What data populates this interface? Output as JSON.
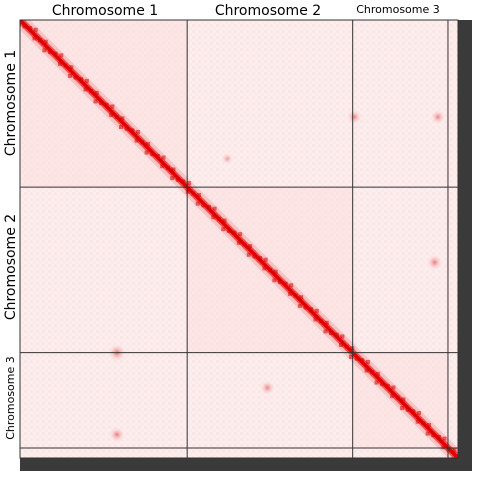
{
  "chart_data": {
    "type": "heatmap",
    "title": "",
    "description_colors": {
      "background": "#ffffff",
      "low": "#fdf0f0",
      "mid": "#f6b8b8",
      "high": "#e00000",
      "boundary": "#333333",
      "frame": "#3a3a3a"
    },
    "chromosomes": [
      {
        "name": "Chromosome 1",
        "start": 0,
        "end": 1.0
      },
      {
        "name": "Chromosome 2",
        "start": 1.0,
        "end": 1.99
      },
      {
        "name": "Chromosome 3",
        "start": 1.99,
        "end": 2.56
      },
      {
        "name": "",
        "start": 2.56,
        "end": 2.62
      }
    ],
    "top_labels": [
      "Chromosome 1",
      "Chromosome 2",
      "Chromosome 3"
    ],
    "side_labels": [
      "Chromosome 1",
      "Chromosome 2",
      "Chromosome 3"
    ],
    "diagonal": "strong red along main diagonal",
    "inter_contacts": [
      {
        "x": 0.58,
        "y": 1.99,
        "value": 0.55
      },
      {
        "x": 0.58,
        "y": 2.48,
        "value": 0.45
      },
      {
        "x": 1.48,
        "y": 2.2,
        "value": 0.4
      },
      {
        "x": 2.0,
        "y": 0.58,
        "value": 0.4
      },
      {
        "x": 2.48,
        "y": 1.45,
        "value": 0.45
      },
      {
        "x": 2.5,
        "y": 0.58,
        "value": 0.4
      },
      {
        "x": 1.24,
        "y": 0.83,
        "value": 0.25
      }
    ]
  }
}
